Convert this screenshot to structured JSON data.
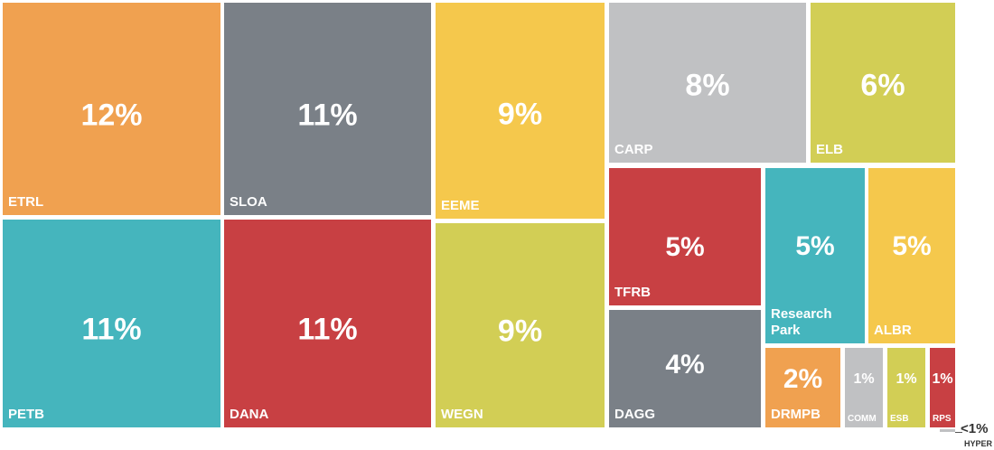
{
  "chart_data": {
    "type": "treemap",
    "categories": [
      "ETRL",
      "PETB",
      "SLOA",
      "DANA",
      "EEME",
      "WEGN",
      "CARP",
      "ELB",
      "TFRB",
      "DAGG",
      "Research Park",
      "ALBR",
      "DRMPB",
      "COMM",
      "ESB",
      "RPS",
      "HYPER"
    ],
    "values": [
      12,
      11,
      11,
      11,
      9,
      9,
      8,
      6,
      5,
      4,
      5,
      5,
      2,
      1,
      1,
      1,
      0.5
    ],
    "value_labels": [
      "12%",
      "11%",
      "11%",
      "11%",
      "9%",
      "9%",
      "8%",
      "6%",
      "5%",
      "4%",
      "5%",
      "5%",
      "2%",
      "1%",
      "1%",
      "1%",
      "<1%"
    ],
    "colors": [
      "#f0a150",
      "#45b5bd",
      "#7a8087",
      "#c84043",
      "#f5c84c",
      "#d2ce55",
      "#c0c1c3",
      "#d2ce55",
      "#c84043",
      "#7a8087",
      "#45b5bd",
      "#f5c84c",
      "#f0a150",
      "#c0c1c3",
      "#d2ce55",
      "#c84043",
      "#c0c1c3"
    ]
  }
}
